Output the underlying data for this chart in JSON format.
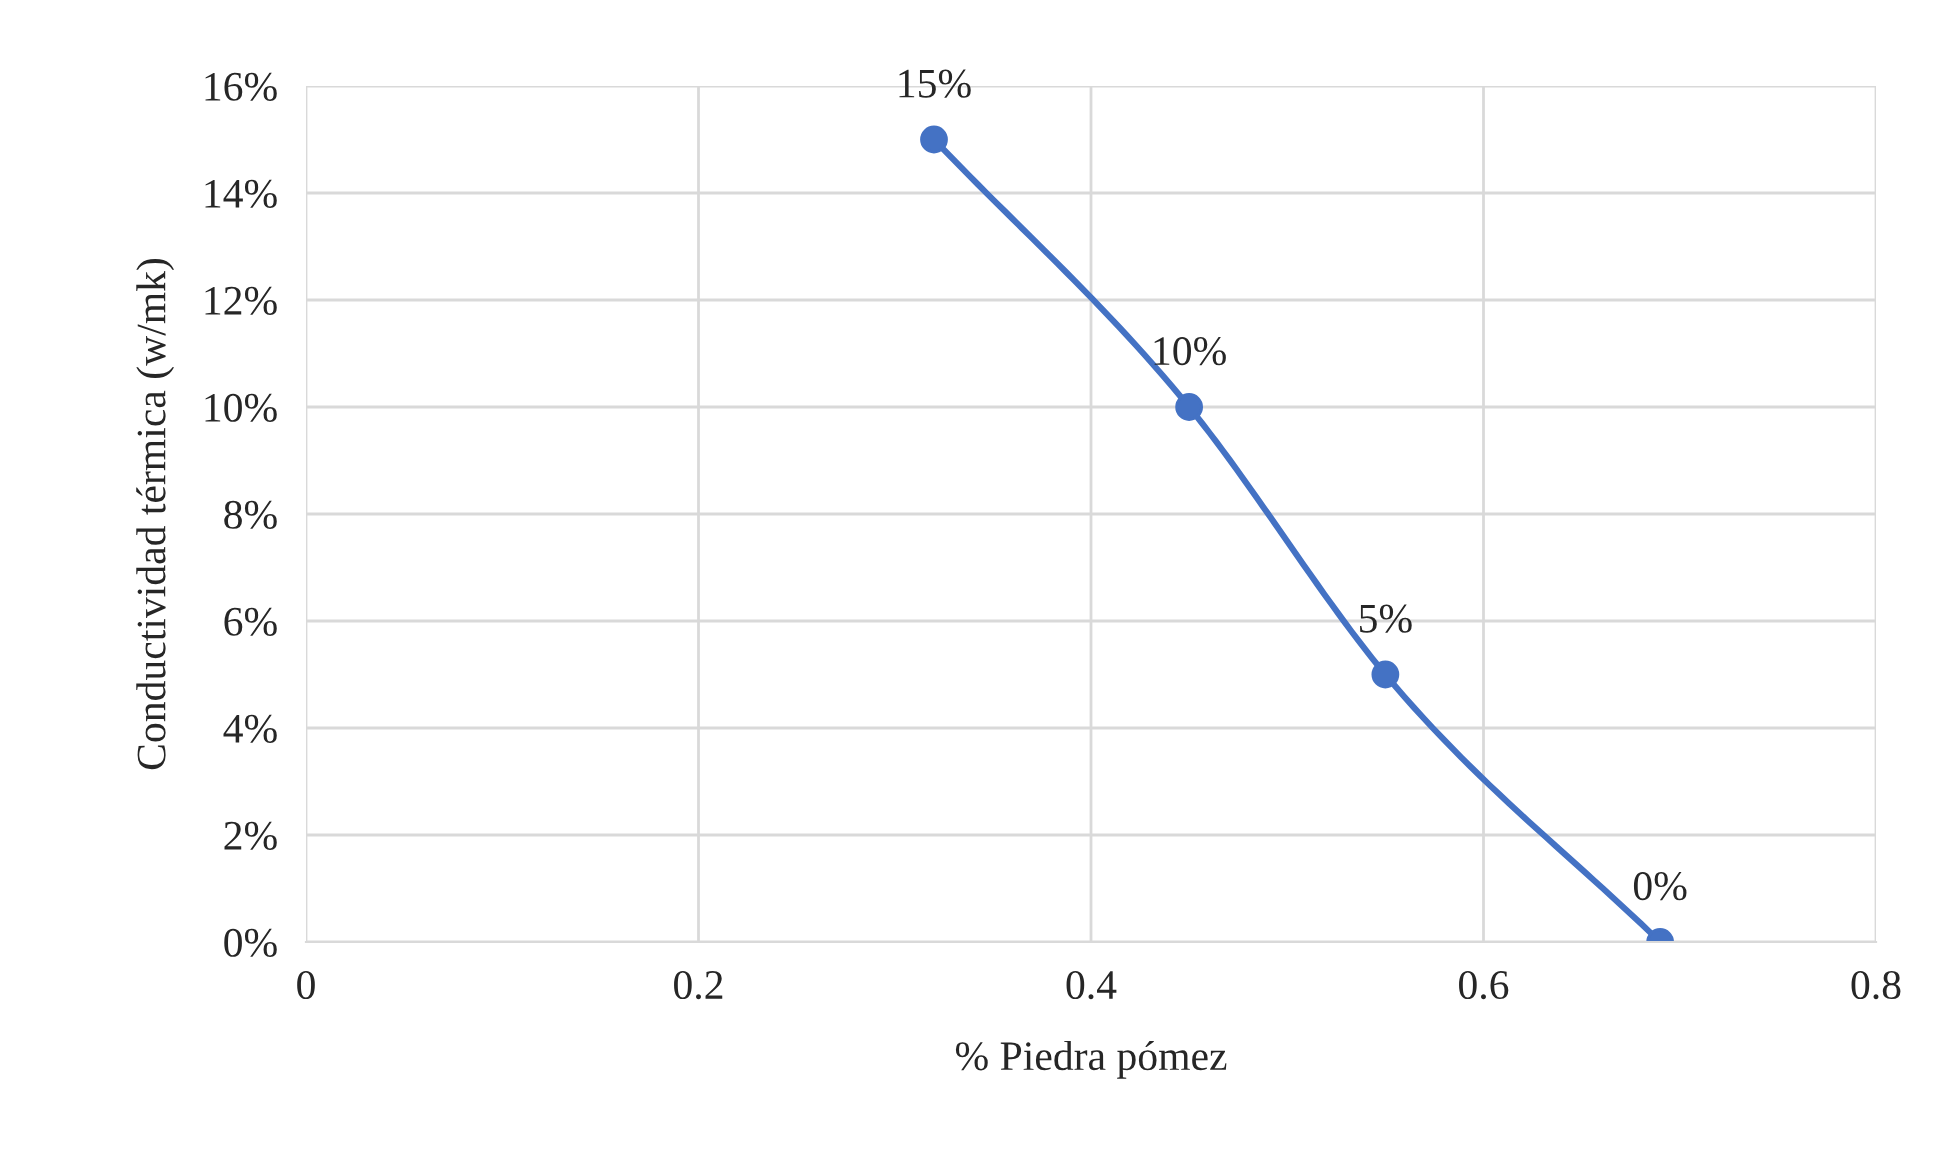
{
  "chart_data": {
    "type": "line",
    "xlabel": "% Piedra pómez",
    "ylabel": "Conductividad térmica (w/mk)",
    "x": [
      0.32,
      0.45,
      0.55,
      0.69
    ],
    "series": [
      {
        "color": "#4472c4",
        "values": [
          15,
          10,
          5,
          0
        ],
        "value_labels": [
          "15%",
          "10%",
          "5%",
          "0%"
        ]
      }
    ],
    "xlim": [
      0,
      0.8
    ],
    "xticks": [
      0,
      0.2,
      0.4,
      0.6,
      0.8
    ],
    "ylim": [
      0,
      16
    ],
    "yticks": [
      {
        "value": 0,
        "label": "0%"
      },
      {
        "value": 2,
        "label": "2%"
      },
      {
        "value": 4,
        "label": "4%"
      },
      {
        "value": 6,
        "label": "6%"
      },
      {
        "value": 8,
        "label": "8%"
      },
      {
        "value": 10,
        "label": "10%"
      },
      {
        "value": 12,
        "label": "12%"
      },
      {
        "value": 14,
        "label": "14%"
      },
      {
        "value": 16,
        "label": "16%"
      }
    ],
    "grid": true,
    "marker": "circle",
    "line_style": "solid",
    "legend": false
  }
}
